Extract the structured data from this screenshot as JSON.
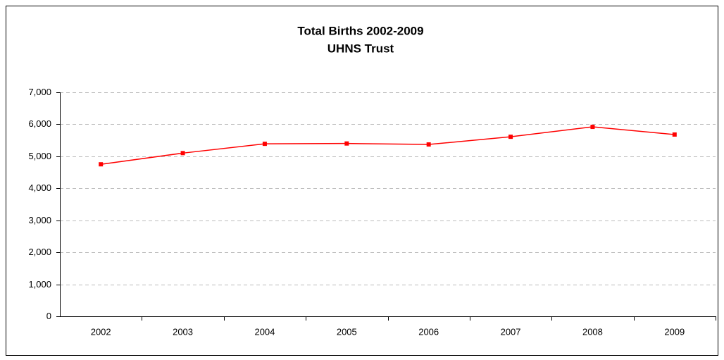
{
  "chart_data": {
    "type": "line",
    "title": "Total Births 2002-2009",
    "subtitle": "UHNS Trust",
    "categories": [
      "2002",
      "2003",
      "2004",
      "2005",
      "2006",
      "2007",
      "2008",
      "2009"
    ],
    "series": [
      {
        "name": "Total Births",
        "color": "#ff0000",
        "values": [
          4750,
          5100,
          5390,
          5400,
          5370,
          5610,
          5920,
          5680
        ]
      }
    ],
    "ylim": [
      0,
      7000
    ],
    "yticks": [
      0,
      {
        "value": 1000,
        "label": "1,000"
      },
      {
        "value": 2000,
        "label": "2,000"
      },
      {
        "value": 3000,
        "label": "3,000"
      },
      {
        "value": 4000,
        "label": "4,000"
      },
      {
        "value": 5000,
        "label": "5,000"
      },
      {
        "value": 6000,
        "label": "6,000"
      },
      {
        "value": 7000,
        "label": "7,000"
      }
    ],
    "grid": true
  }
}
